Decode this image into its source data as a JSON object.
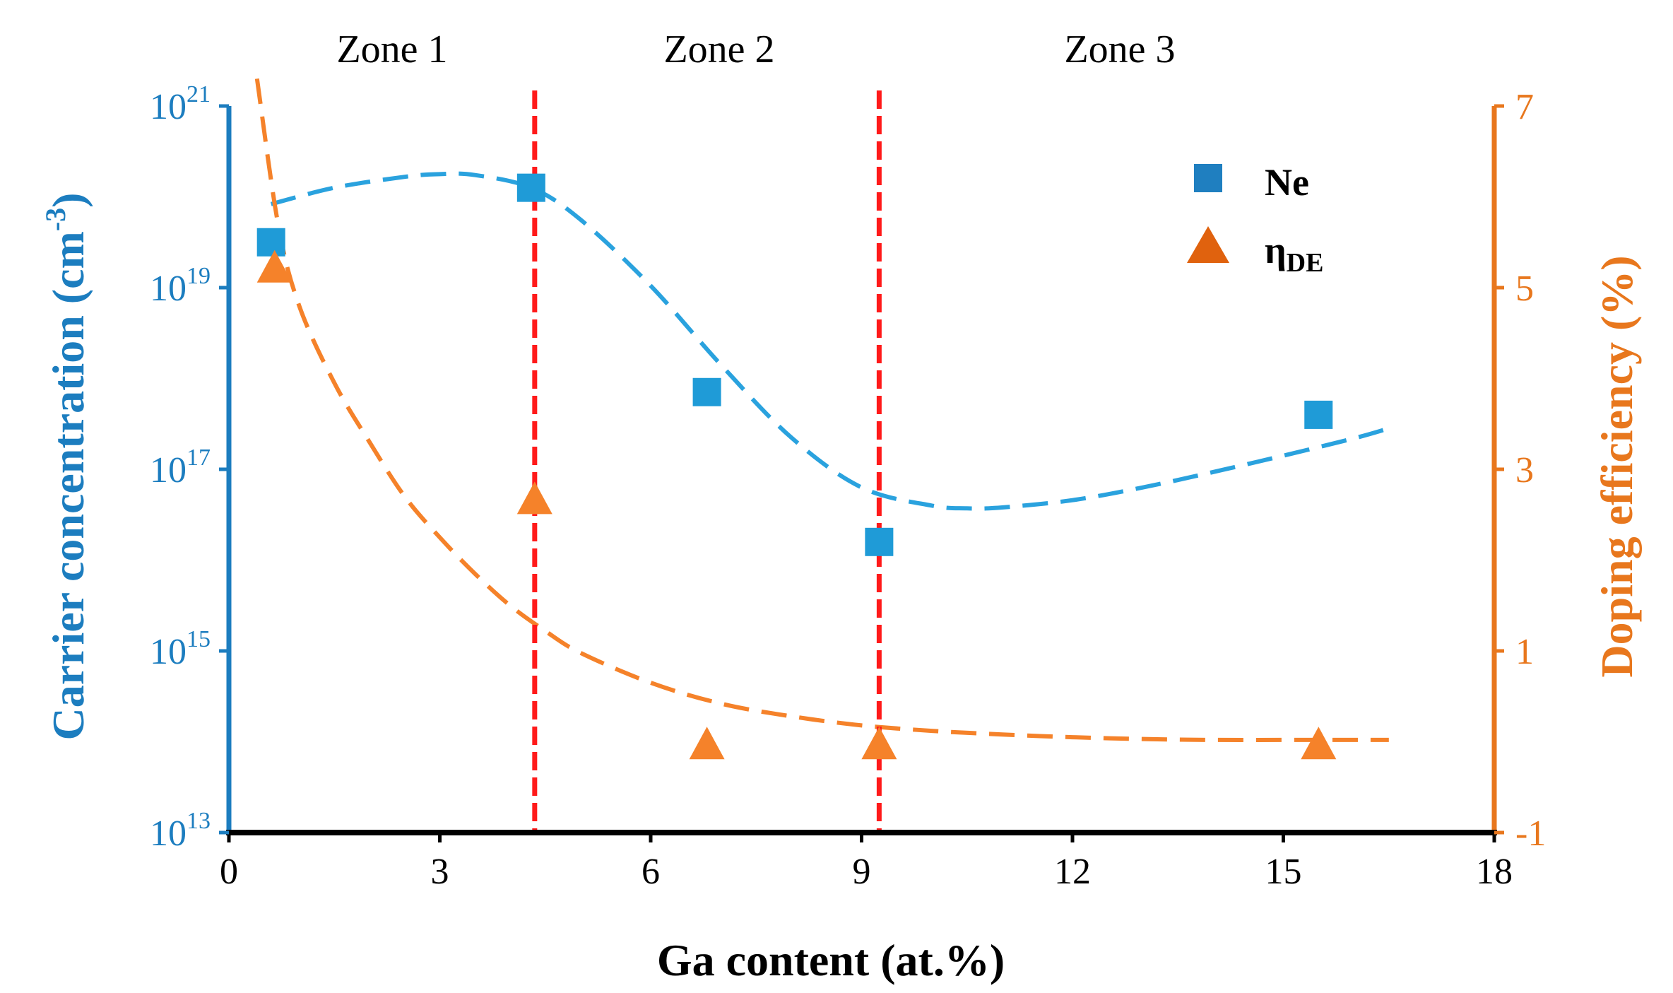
{
  "chart_data": {
    "type": "scatter",
    "x_axis": {
      "label": "Ga content (at.%)",
      "range": [
        0,
        18
      ],
      "ticks": [
        "0",
        "3",
        "6",
        "9",
        "12",
        "15",
        "18"
      ]
    },
    "y_left": {
      "label_main": "Carrier concentration (cm",
      "label_sup": "-3",
      "label_end": ")",
      "scale": "log",
      "range_exp": [
        13,
        21
      ],
      "ticks": [
        {
          "exp": 13,
          "base": "10",
          "sup": "13"
        },
        {
          "exp": 15,
          "base": "10",
          "sup": "15"
        },
        {
          "exp": 17,
          "base": "10",
          "sup": "17"
        },
        {
          "exp": 19,
          "base": "10",
          "sup": "19"
        },
        {
          "exp": 21,
          "base": "10",
          "sup": "21"
        }
      ]
    },
    "y_right": {
      "label": "Doping efficiency (%)",
      "range": [
        -1,
        7
      ],
      "ticks": [
        "-1",
        "1",
        "3",
        "5",
        "7"
      ]
    },
    "zones": [
      "Zone 1",
      "Zone 2",
      "Zone 3"
    ],
    "zone_boundaries_x": [
      4.35,
      9.25
    ],
    "series": [
      {
        "name": "Ne",
        "marker": "square",
        "axis": "left",
        "color": "#1F9BD7",
        "points": [
          {
            "x": 0.6,
            "y_exp": 19.5
          },
          {
            "x": 4.3,
            "y_exp": 20.1
          },
          {
            "x": 6.8,
            "y_exp": 17.85
          },
          {
            "x": 9.25,
            "y_exp": 16.2
          },
          {
            "x": 15.5,
            "y_exp": 17.6
          }
        ],
        "fit": {
          "x": [
            0.6,
            1.5,
            2.5,
            3.0,
            3.5,
            4.3,
            5.0,
            6.0,
            7.0,
            8.0,
            9.0,
            10.0,
            10.5,
            11.0,
            12.0,
            13.0,
            14.0,
            15.0,
            16.0,
            16.5
          ],
          "y_exp": [
            19.92,
            20.1,
            20.22,
            20.25,
            20.24,
            20.1,
            19.75,
            19.02,
            18.15,
            17.35,
            16.8,
            16.6,
            16.57,
            16.58,
            16.66,
            16.8,
            16.97,
            17.15,
            17.34,
            17.45
          ]
        }
      },
      {
        "name": "ηDE",
        "label_main": "η",
        "label_sub": "DE",
        "marker": "triangle",
        "axis": "right",
        "color": "#F5822A",
        "points": [
          {
            "x": 0.65,
            "y": 5.2
          },
          {
            "x": 4.35,
            "y": 2.65
          },
          {
            "x": 6.8,
            "y": -0.05
          },
          {
            "x": 9.25,
            "y": -0.05
          },
          {
            "x": 15.5,
            "y": -0.05
          }
        ],
        "fit": {
          "x": [
            0.4,
            0.7,
            1.0,
            1.5,
            2.0,
            2.5,
            3.0,
            3.5,
            4.0,
            4.5,
            5.0,
            6.0,
            7.0,
            8.0,
            9.0,
            10.0,
            11.0,
            12.0,
            13.0,
            14.0,
            15.0,
            16.0,
            16.5
          ],
          "y": [
            7.3,
            5.7,
            4.8,
            3.95,
            3.3,
            2.7,
            2.25,
            1.85,
            1.5,
            1.22,
            0.98,
            0.65,
            0.42,
            0.28,
            0.18,
            0.12,
            0.08,
            0.05,
            0.03,
            0.02,
            0.02,
            0.02,
            0.02
          ]
        }
      }
    ],
    "colors": {
      "left_axis": "#1C7DBF",
      "left_fit": "#2AA2DE",
      "right_axis": "#E8771D",
      "right_fit": "#F5822A",
      "zone_lines": "#FF1A1A",
      "x_axis": "#000000",
      "legend_ne": "#1F7FC0",
      "legend_eta": "#E0620E"
    }
  }
}
